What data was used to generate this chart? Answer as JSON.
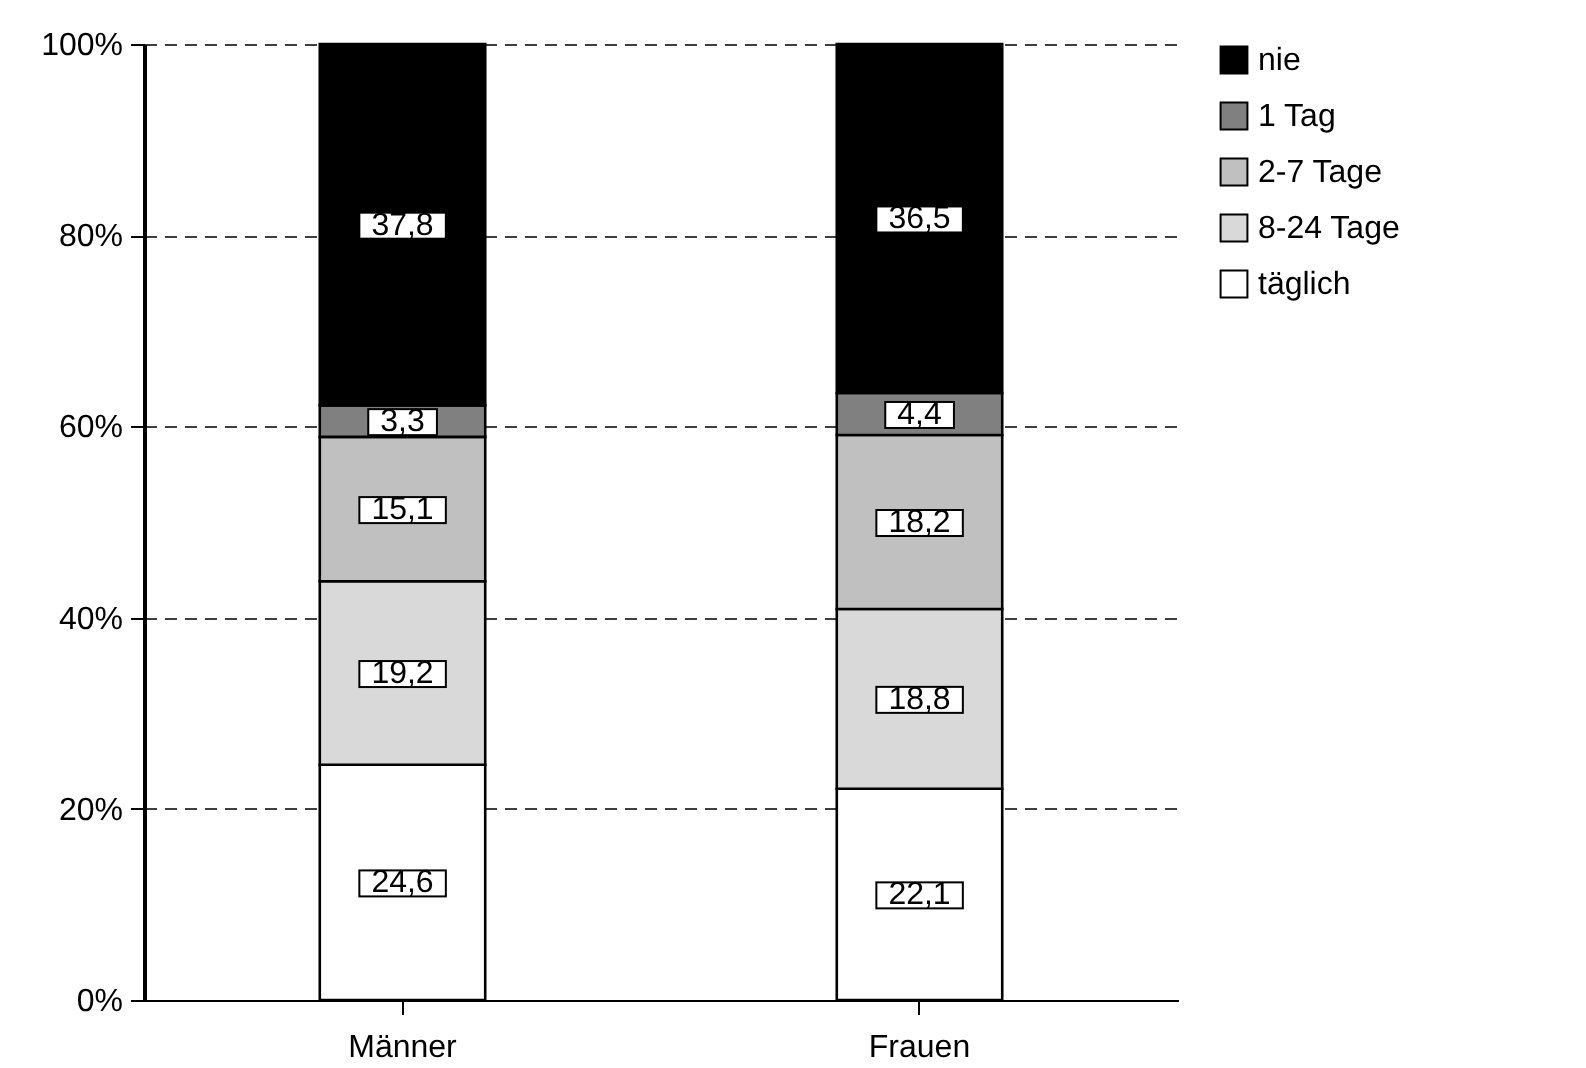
{
  "chart_data": {
    "type": "bar",
    "stacked": true,
    "categories": [
      "Männer",
      "Frauen"
    ],
    "series": [
      {
        "name": "täglich",
        "color": "#ffffff",
        "values": [
          24.6,
          22.1
        ],
        "value_labels": [
          "24,6",
          "22,1"
        ]
      },
      {
        "name": "8-24 Tage",
        "color": "#d9d9d9",
        "values": [
          19.2,
          18.8
        ],
        "value_labels": [
          "19,2",
          "18,8"
        ]
      },
      {
        "name": "2-7 Tage",
        "color": "#c0c0c0",
        "values": [
          15.1,
          18.2
        ],
        "value_labels": [
          "15,1",
          "18,2"
        ]
      },
      {
        "name": "1 Tag",
        "color": "#808080",
        "values": [
          3.3,
          4.4
        ],
        "value_labels": [
          "3,3",
          "4,4"
        ]
      },
      {
        "name": "nie",
        "color": "#000000",
        "values": [
          37.8,
          36.5
        ],
        "value_labels": [
          "37,8",
          "36,5"
        ]
      }
    ],
    "ylim": [
      0,
      100
    ],
    "yticks": [
      {
        "value": 0,
        "label": "0%"
      },
      {
        "value": 20,
        "label": "20%"
      },
      {
        "value": 40,
        "label": "40%"
      },
      {
        "value": 60,
        "label": "60%"
      },
      {
        "value": 80,
        "label": "80%"
      },
      {
        "value": 100,
        "label": "100%"
      }
    ],
    "grid": "y",
    "legend": "right"
  }
}
